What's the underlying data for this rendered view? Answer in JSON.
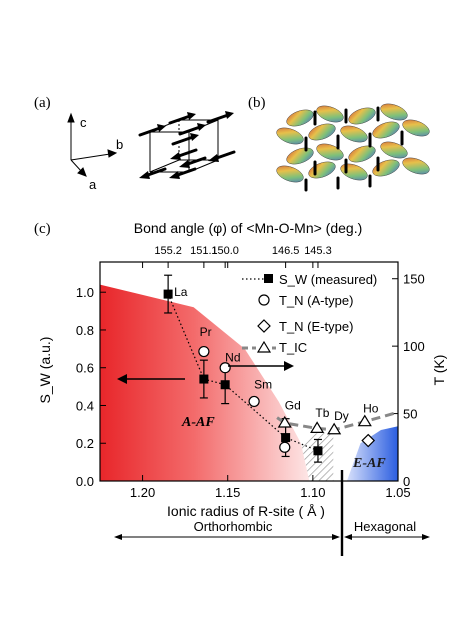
{
  "panels": {
    "a": {
      "label": "(a)",
      "axes": [
        "c",
        "b",
        "a"
      ]
    },
    "b": {
      "label": "(b)"
    },
    "c": {
      "label": "(c)"
    }
  },
  "chart_data": {
    "type": "scatter",
    "title": "Bond angle (φ) of <Mn-O-Mn> (deg.)",
    "xlabel": "Ionic radius of R-site ( Å )",
    "ylabel_left": "S_W (a.u.)",
    "ylabel_right": "T (K)",
    "xlim": [
      1.225,
      1.05
    ],
    "ylim_left": [
      0,
      1.16
    ],
    "ylim_right": [
      0,
      162.4
    ],
    "x_ticks": [
      "1.20",
      "1.15",
      "1.10",
      "1.05"
    ],
    "x_tick_values": [
      1.2,
      1.15,
      1.1,
      1.05
    ],
    "y_left_ticks": [
      "0.0",
      "0.2",
      "0.4",
      "0.6",
      "0.8",
      "1.0"
    ],
    "y_left_tick_values": [
      0,
      0.2,
      0.4,
      0.6,
      0.8,
      1.0
    ],
    "y_right_ticks": [
      "0",
      "50",
      "100",
      "150"
    ],
    "y_right_tick_values": [
      0,
      50,
      100,
      150
    ],
    "top_ticks": [
      "155.2",
      "151.1",
      "150.0",
      "146.5",
      "145.3"
    ],
    "top_tick_positions": [
      1.185,
      1.164,
      1.1515,
      1.116,
      1.097
    ],
    "legend": [
      "S_W (measured)",
      "T_N (A-type)",
      "T_N (E-type)",
      "T_IC"
    ],
    "series": [
      {
        "name": "S_W (measured)",
        "points": [
          {
            "x": 1.185,
            "y": 0.99,
            "err": 0.1
          },
          {
            "x": 1.164,
            "y": 0.54,
            "err": 0.1
          },
          {
            "x": 1.1515,
            "y": 0.51,
            "err": 0.1
          },
          {
            "x": 1.116,
            "y": 0.23,
            "err": 0.1
          },
          {
            "x": 1.097,
            "y": 0.16,
            "err": 0.06
          }
        ]
      },
      {
        "name": "T_N (A-type)",
        "points": [
          {
            "x": 1.164,
            "y": 96
          },
          {
            "x": 1.1515,
            "y": 84
          },
          {
            "x": 1.1345,
            "y": 59
          },
          {
            "x": 1.1165,
            "y": 25
          }
        ]
      },
      {
        "name": "T_N (E-type)",
        "points": [
          {
            "x": 1.0675,
            "y": 30
          }
        ]
      },
      {
        "name": "T_IC",
        "points": [
          {
            "x": 1.1165,
            "y": 43
          },
          {
            "x": 1.0975,
            "y": 39
          },
          {
            "x": 1.0875,
            "y": 38
          },
          {
            "x": 1.0695,
            "y": 44
          }
        ]
      }
    ],
    "element_labels": [
      {
        "text": "La",
        "x": 1.1815,
        "y": 1.0
      },
      {
        "text": "Pr",
        "x": 1.1665,
        "y": 0.79
      },
      {
        "text": "Nd",
        "x": 1.1515,
        "y": 0.655
      },
      {
        "text": "Sm",
        "x": 1.1345,
        "y": 0.51
      },
      {
        "text": "Gd",
        "x": 1.1165,
        "y": 0.4
      },
      {
        "text": "Tb",
        "x": 1.0985,
        "y": 0.36
      },
      {
        "text": "Dy",
        "x": 1.0875,
        "y": 0.345
      },
      {
        "text": "Ho",
        "x": 1.0705,
        "y": 0.385
      }
    ],
    "region_labels": [
      "A-AF",
      "E-AF"
    ],
    "bottom_labels": [
      "Orthorhombic",
      "Hexagonal"
    ]
  },
  "colors": {
    "a_af_region": "#e8262a",
    "e_af_region": "#2a5de0",
    "tic_line": "#888888"
  }
}
